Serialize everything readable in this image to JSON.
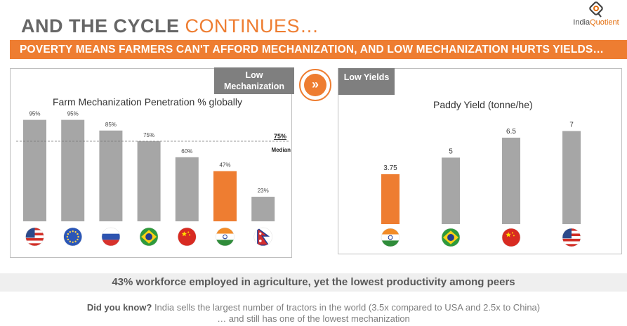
{
  "header": {
    "title_part1": "AND THE CYCLE ",
    "title_part2": "CONTINUES…",
    "logo_text_1": "India",
    "logo_text_2": "Quotient",
    "banner": "POVERTY MEANS FARMERS CAN'T AFFORD MECHANIZATION, AND LOW MECHANIZATION HURTS YIELDS…"
  },
  "left_panel": {
    "tag_line1": "Low",
    "tag_line2": "Mechanization"
  },
  "right_panel": {
    "tag": "Low Yields"
  },
  "arrow_glyph": "»",
  "strip_text": "43% workforce employed in agriculture, yet the lowest productivity among peers",
  "footnote": {
    "lead": "Did you know?",
    "line1": " India sells the largest number of tractors in the world (3.5x compared to USA and 2.5x to China)",
    "line2": "… and still has one of the lowest mechanization"
  },
  "colors": {
    "accent": "#ee7d31",
    "bar": "#a6a6a6",
    "tag": "#7f7f7f"
  },
  "chart_data": [
    {
      "type": "bar",
      "title": "Farm Mechanization Penetration % globally",
      "categories": [
        "USA",
        "EU",
        "Russia",
        "Brazil",
        "China",
        "India",
        "Nepal"
      ],
      "category_icons": [
        "flag-usa-icon",
        "flag-eu-icon",
        "flag-russia-icon",
        "flag-brazil-icon",
        "flag-china-icon",
        "flag-india-icon",
        "flag-nepal-icon"
      ],
      "values": [
        95,
        95,
        85,
        75,
        60,
        47,
        23
      ],
      "data_labels": [
        "95%",
        "95%",
        "85%",
        "75%",
        "60%",
        "47%",
        "23%"
      ],
      "highlight_index": 5,
      "median": {
        "value": 75,
        "label": "75%",
        "name": "Median"
      },
      "ylim": [
        0,
        100
      ],
      "grid": false
    },
    {
      "type": "bar",
      "title": "Paddy Yield (tonne/he)",
      "categories": [
        "India",
        "Brazil",
        "China",
        "USA"
      ],
      "category_icons": [
        "flag-india-icon",
        "flag-brazil-icon",
        "flag-china-icon",
        "flag-usa-icon"
      ],
      "values": [
        3.75,
        5,
        6.5,
        7
      ],
      "data_labels": [
        "3.75",
        "5",
        "6.5",
        "7"
      ],
      "highlight_index": 0,
      "ylim": [
        0,
        7.5
      ],
      "grid": false
    }
  ]
}
